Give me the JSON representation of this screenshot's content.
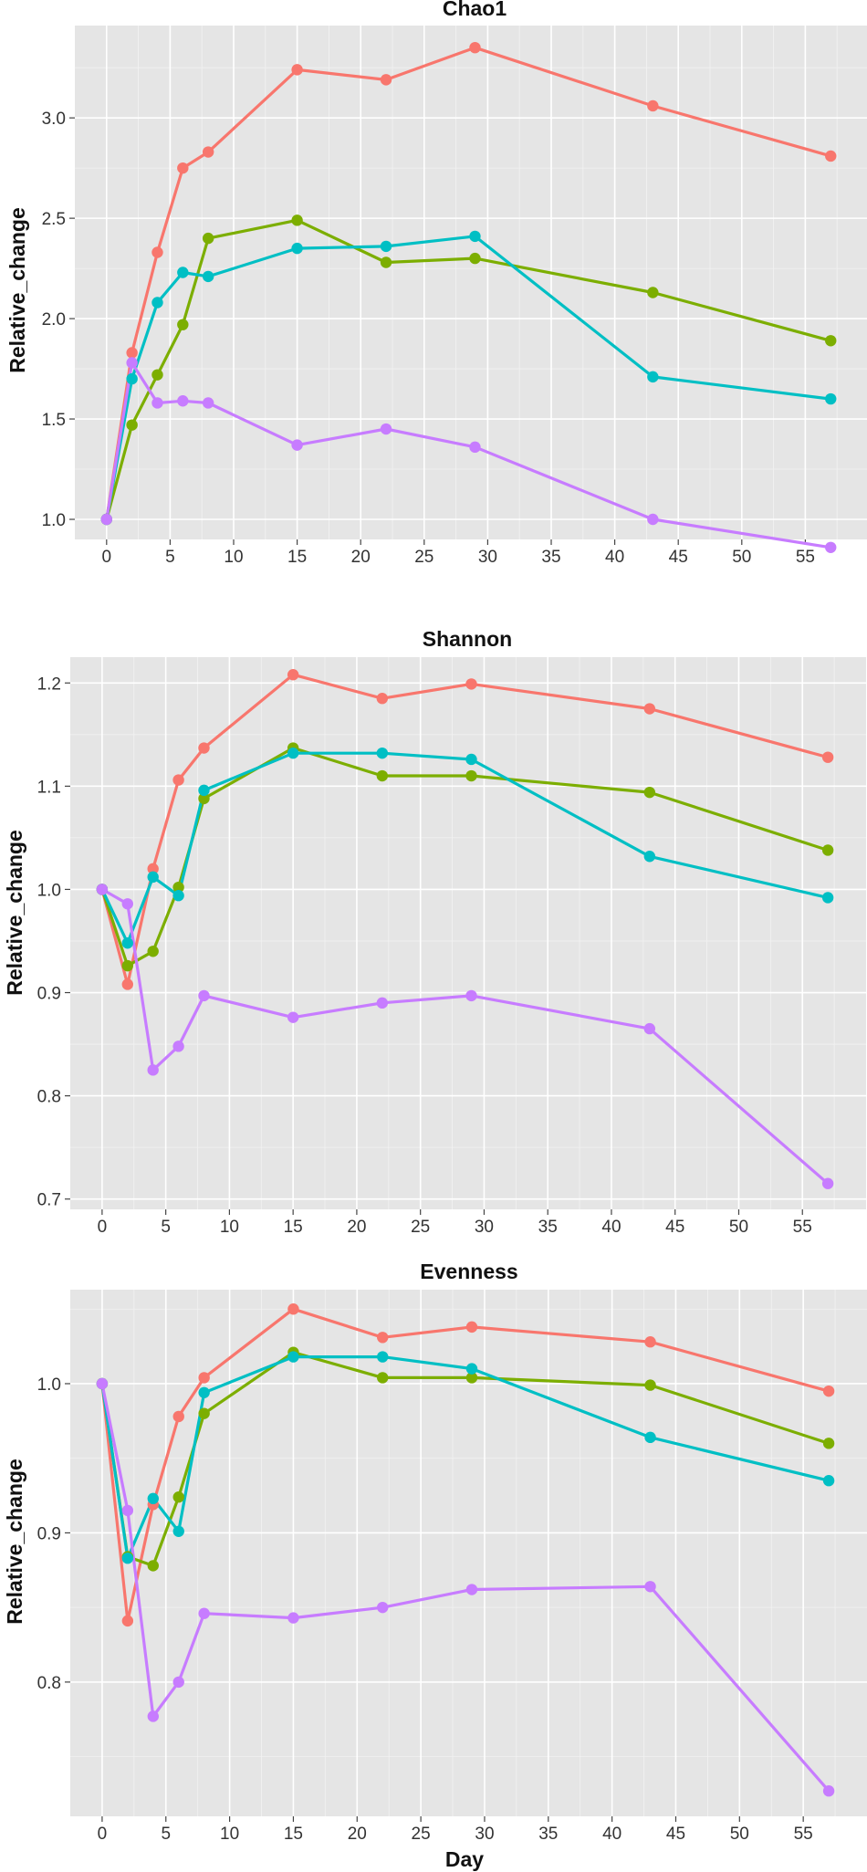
{
  "chart_data": [
    {
      "type": "line",
      "title": "Chao1",
      "xlabel": "",
      "ylabel": "Relative_change",
      "xlim": [
        -2.5,
        60
      ],
      "ylim": [
        0.9,
        3.46
      ],
      "xticks": [
        0,
        5,
        10,
        15,
        20,
        25,
        30,
        35,
        40,
        45,
        50,
        55
      ],
      "yticks": [
        1.0,
        1.5,
        2.0,
        2.5,
        3.0
      ],
      "ytick_labels": [
        "1.0",
        "1.5",
        "2.0",
        "2.5",
        "3.0"
      ],
      "x": [
        0,
        2,
        4,
        6,
        8,
        15,
        22,
        29,
        43,
        57
      ],
      "series": [
        {
          "name": "red",
          "color": "#F8766D",
          "values": [
            1.0,
            1.83,
            2.33,
            2.75,
            2.83,
            3.24,
            3.19,
            3.35,
            3.06,
            2.81
          ]
        },
        {
          "name": "green",
          "color": "#7CAE00",
          "values": [
            1.0,
            1.47,
            1.72,
            1.97,
            2.4,
            2.49,
            2.28,
            2.3,
            2.13,
            1.89
          ]
        },
        {
          "name": "cyan",
          "color": "#00BFC4",
          "values": [
            1.0,
            1.7,
            2.08,
            2.23,
            2.21,
            2.35,
            2.36,
            2.41,
            1.71,
            1.6
          ]
        },
        {
          "name": "purple",
          "color": "#C77CFF",
          "values": [
            1.0,
            1.78,
            1.58,
            1.59,
            1.58,
            1.37,
            1.45,
            1.36,
            1.0,
            0.86
          ]
        }
      ]
    },
    {
      "type": "line",
      "title": "Shannon",
      "xlabel": "",
      "ylabel": "Relative_change",
      "xlim": [
        -2.5,
        60
      ],
      "ylim": [
        0.69,
        1.225
      ],
      "xticks": [
        0,
        5,
        10,
        15,
        20,
        25,
        30,
        35,
        40,
        45,
        50,
        55
      ],
      "yticks": [
        0.7,
        0.8,
        0.9,
        1.0,
        1.1,
        1.2
      ],
      "ytick_labels": [
        "0.7",
        "0.8",
        "0.9",
        "1.0",
        "1.1",
        "1.2"
      ],
      "x": [
        0,
        2,
        4,
        6,
        8,
        15,
        22,
        29,
        43,
        57
      ],
      "series": [
        {
          "name": "red",
          "color": "#F8766D",
          "values": [
            1.0,
            0.908,
            1.02,
            1.106,
            1.137,
            1.208,
            1.185,
            1.199,
            1.175,
            1.128
          ]
        },
        {
          "name": "green",
          "color": "#7CAE00",
          "values": [
            1.0,
            0.926,
            0.94,
            1.002,
            1.088,
            1.137,
            1.11,
            1.11,
            1.094,
            1.038
          ]
        },
        {
          "name": "cyan",
          "color": "#00BFC4",
          "values": [
            1.0,
            0.948,
            1.012,
            0.994,
            1.096,
            1.132,
            1.132,
            1.126,
            1.032,
            0.992
          ]
        },
        {
          "name": "purple",
          "color": "#C77CFF",
          "values": [
            1.0,
            0.986,
            0.825,
            0.848,
            0.897,
            0.876,
            0.89,
            0.897,
            0.865,
            0.715
          ]
        }
      ]
    },
    {
      "type": "line",
      "title": "Evenness",
      "xlabel": "Day",
      "ylabel": "Relative_change",
      "xlim": [
        -2.5,
        60
      ],
      "ylim": [
        0.71,
        1.063
      ],
      "xticks": [
        0,
        5,
        10,
        15,
        20,
        25,
        30,
        35,
        40,
        45,
        50,
        55
      ],
      "yticks": [
        0.8,
        0.9,
        1.0
      ],
      "ytick_labels": [
        "0.8",
        "0.9",
        "1.0"
      ],
      "x": [
        0,
        2,
        4,
        6,
        8,
        15,
        22,
        29,
        43,
        57
      ],
      "series": [
        {
          "name": "red",
          "color": "#F8766D",
          "values": [
            1.0,
            0.841,
            0.919,
            0.978,
            1.004,
            1.05,
            1.031,
            1.038,
            1.028,
            0.995
          ]
        },
        {
          "name": "green",
          "color": "#7CAE00",
          "values": [
            1.0,
            0.884,
            0.878,
            0.924,
            0.98,
            1.021,
            1.004,
            1.004,
            0.999,
            0.96
          ]
        },
        {
          "name": "cyan",
          "color": "#00BFC4",
          "values": [
            1.0,
            0.883,
            0.923,
            0.901,
            0.994,
            1.018,
            1.018,
            1.01,
            0.964,
            0.935
          ]
        },
        {
          "name": "purple",
          "color": "#C77CFF",
          "values": [
            1.0,
            0.915,
            0.777,
            0.8,
            0.846,
            0.843,
            0.85,
            0.862,
            0.864,
            0.727
          ]
        }
      ]
    }
  ]
}
